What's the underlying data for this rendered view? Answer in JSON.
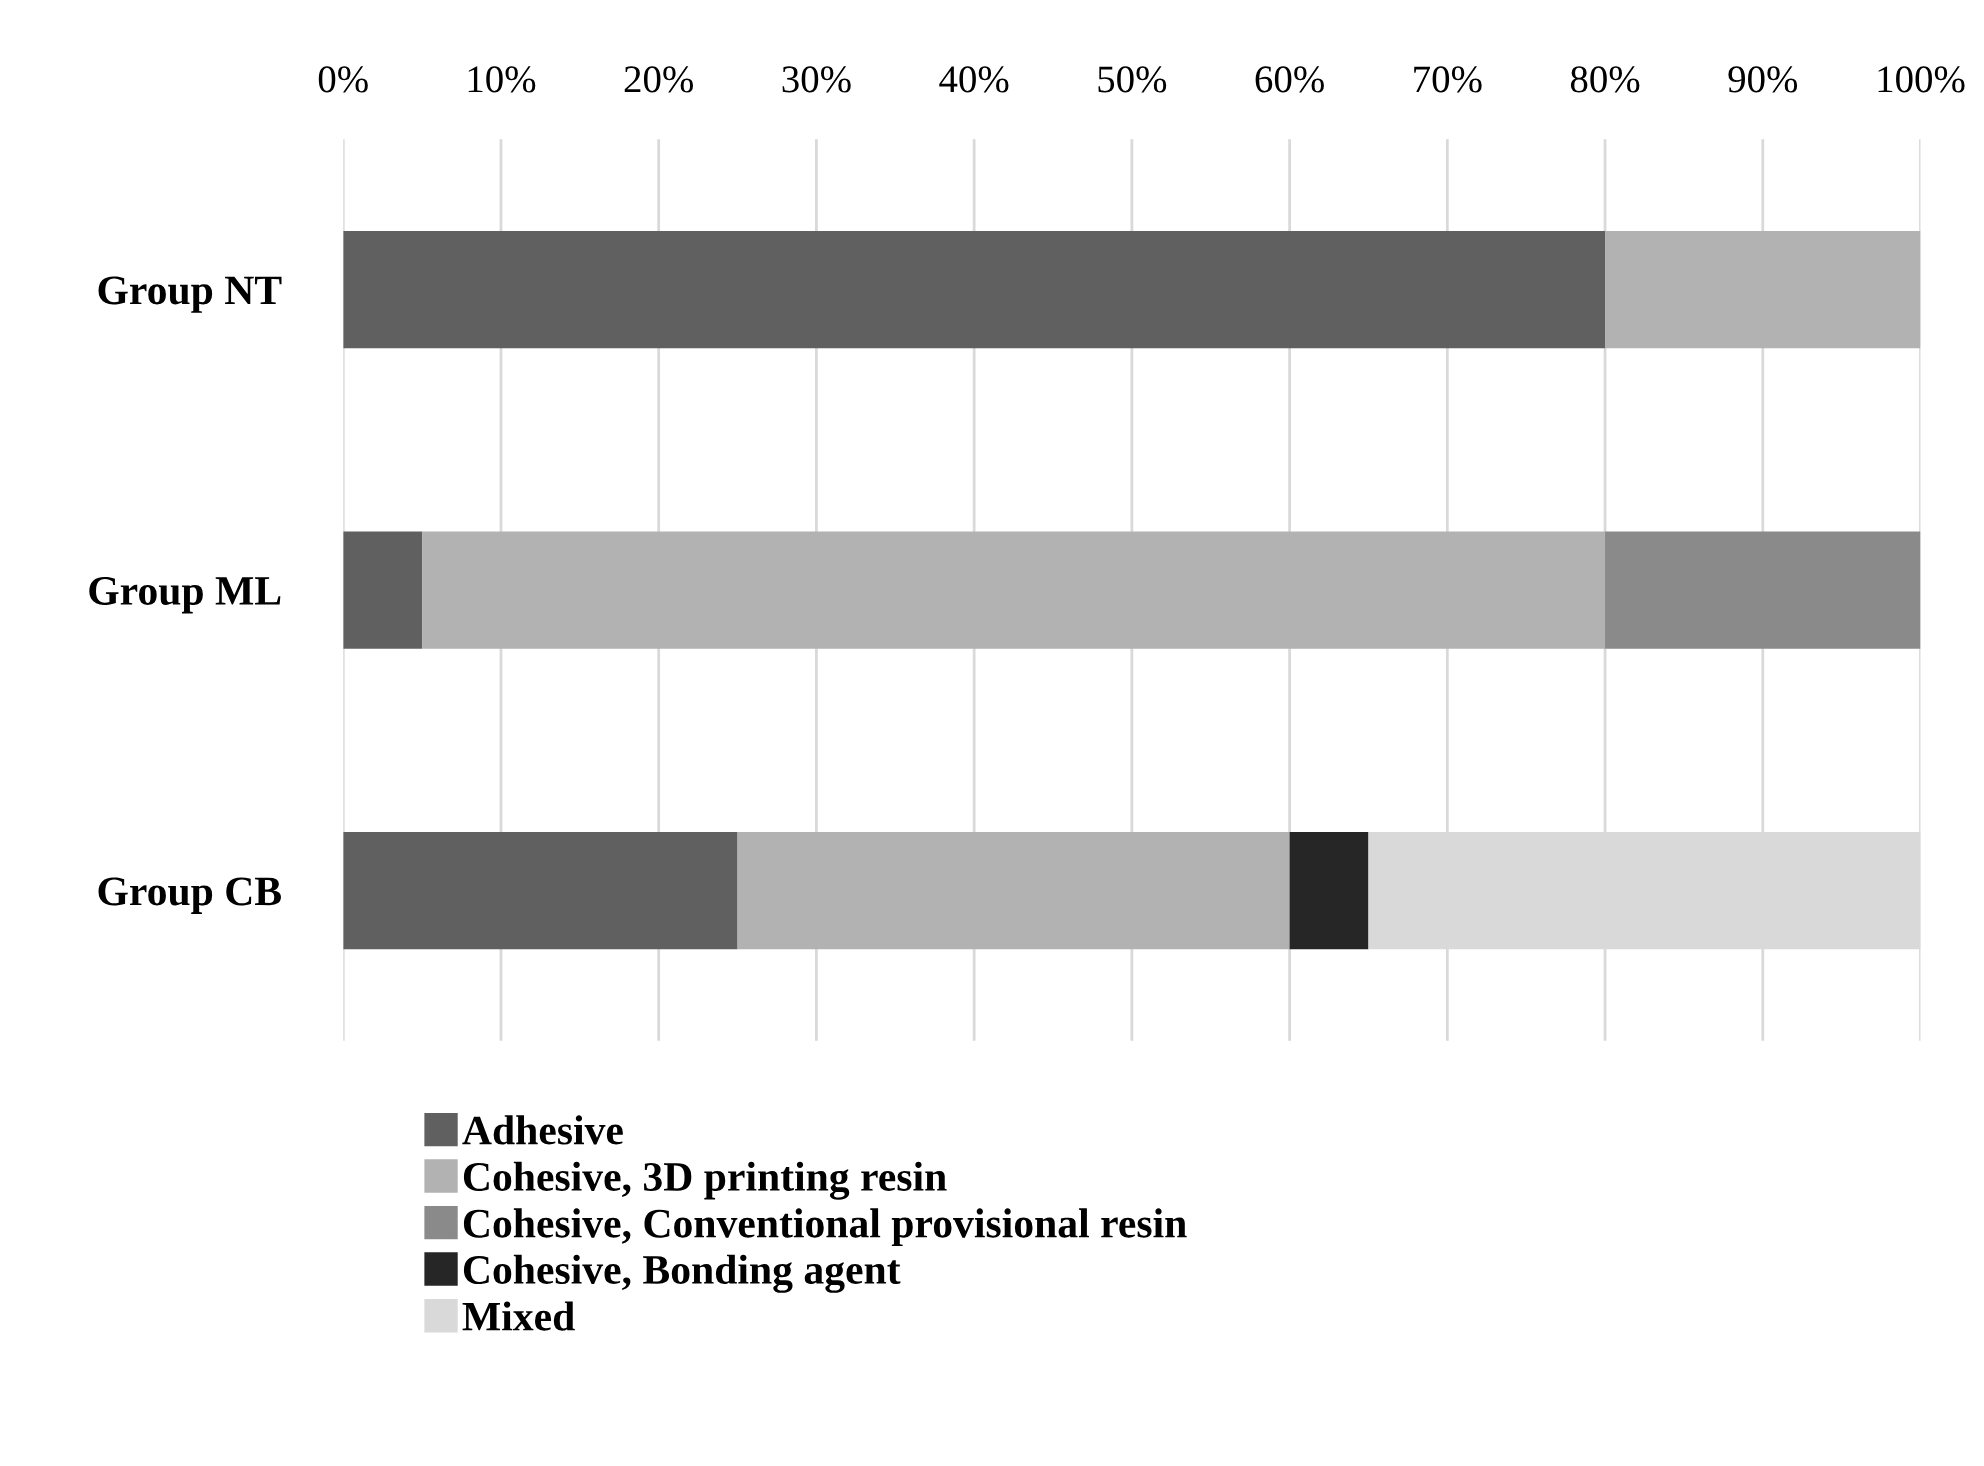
{
  "chart_data": {
    "type": "bar",
    "orientation": "horizontal",
    "stacked": true,
    "categories": [
      "Group NT",
      "Group ML",
      "Group CB"
    ],
    "series": [
      {
        "name": "Adhesive",
        "color": "#606060",
        "values": [
          80,
          5,
          25
        ]
      },
      {
        "name": "Cohesive, 3D printing resin",
        "color": "#b2b2b2",
        "values": [
          20,
          75,
          35
        ]
      },
      {
        "name": "Cohesive, Conventional provisional resin",
        "color": "#8a8a8a",
        "values": [
          0,
          20,
          0
        ]
      },
      {
        "name": "Cohesive, Bonding agent",
        "color": "#262626",
        "values": [
          0,
          0,
          5
        ]
      },
      {
        "name": "Mixed",
        "color": "#d9d9d9",
        "values": [
          0,
          0,
          35
        ]
      }
    ],
    "xlim": [
      0,
      100
    ],
    "xticks": [
      {
        "value": 0,
        "label": "0%"
      },
      {
        "value": 10,
        "label": "10%"
      },
      {
        "value": 20,
        "label": "20%"
      },
      {
        "value": 30,
        "label": "30%"
      },
      {
        "value": 40,
        "label": "40%"
      },
      {
        "value": 50,
        "label": "50%"
      },
      {
        "value": 60,
        "label": "60%"
      },
      {
        "value": 70,
        "label": "70%"
      },
      {
        "value": 80,
        "label": "80%"
      },
      {
        "value": 90,
        "label": "90%"
      },
      {
        "value": 100,
        "label": "100%"
      }
    ],
    "grid": "x",
    "legend": "bottom"
  }
}
